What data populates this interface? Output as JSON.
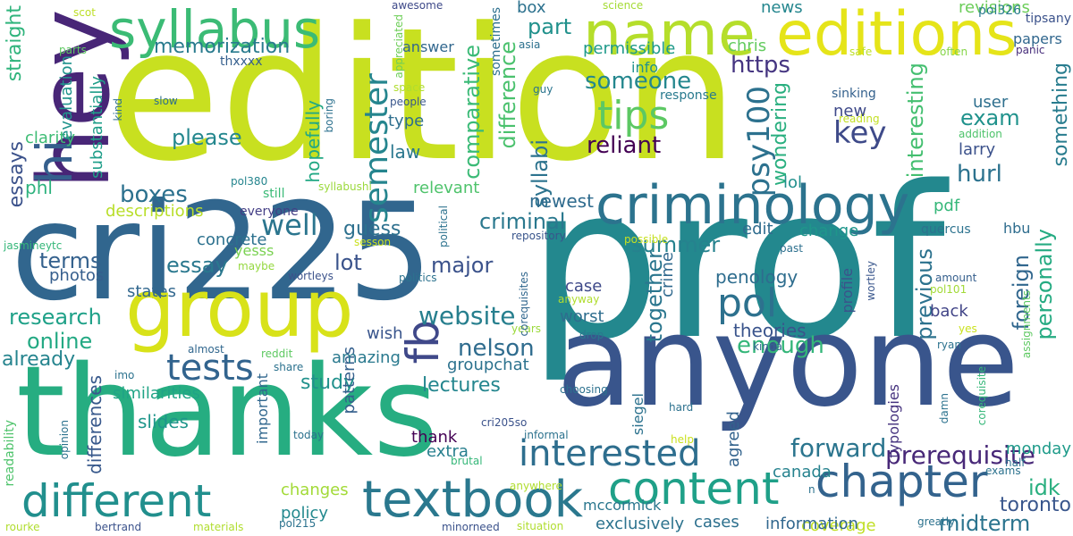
{
  "words": [
    {
      "text": "edition",
      "color": "#c8e020"
    },
    {
      "text": "prof",
      "color": "#23888e"
    },
    {
      "text": "cri225",
      "color": "#31668e"
    },
    {
      "text": "thanks",
      "color": "#26ad81"
    },
    {
      "text": "anyone",
      "color": "#39558c"
    },
    {
      "text": "hey",
      "color": "#482677"
    },
    {
      "text": "group",
      "color": "#d8e219"
    },
    {
      "text": "editions",
      "color": "#e5e419"
    },
    {
      "text": "syllabus",
      "color": "#3bbb75"
    },
    {
      "text": "name",
      "color": "#b5de2b"
    },
    {
      "text": "criminology",
      "color": "#2c738e"
    },
    {
      "text": "different",
      "color": "#218f8d"
    },
    {
      "text": "textbook",
      "color": "#2a788e"
    },
    {
      "text": "content",
      "color": "#1fa088"
    },
    {
      "text": "chapter",
      "color": "#33638d"
    },
    {
      "text": "interested",
      "color": "#2e6e8e"
    },
    {
      "text": "hi",
      "color": "#355f8d"
    },
    {
      "text": "tests",
      "color": "#32648e"
    },
    {
      "text": "fb",
      "color": "#3f4889"
    },
    {
      "text": "semester",
      "color": "#25858e"
    },
    {
      "text": "tips",
      "color": "#5cc863"
    },
    {
      "text": "pol",
      "color": "#2d718e"
    },
    {
      "text": "forward",
      "color": "#2b758e"
    },
    {
      "text": "prerequisite",
      "color": "#482878"
    },
    {
      "text": "well",
      "color": "#2b758e"
    },
    {
      "text": "website",
      "color": "#277f8e"
    },
    {
      "text": "key",
      "color": "#3e4a89"
    },
    {
      "text": "psy100",
      "color": "#2c718e"
    },
    {
      "text": "https",
      "color": "#453581"
    },
    {
      "text": "someone",
      "color": "#24878e"
    },
    {
      "text": "reliant",
      "color": "#440154"
    },
    {
      "text": "comparative",
      "color": "#3aba76"
    },
    {
      "text": "difference",
      "color": "#4ac16d"
    },
    {
      "text": "syllabi",
      "color": "#2c738e"
    },
    {
      "text": "part",
      "color": "#21918c"
    },
    {
      "text": "memorization",
      "color": "#297b8e"
    },
    {
      "text": "please",
      "color": "#24878e"
    },
    {
      "text": "criminal",
      "color": "#2a788e"
    },
    {
      "text": "summer",
      "color": "#26828e"
    },
    {
      "text": "boxes",
      "color": "#2c718e"
    },
    {
      "text": "essay",
      "color": "#2a788e"
    },
    {
      "text": "terms",
      "color": "#34618d"
    },
    {
      "text": "lot",
      "color": "#3a538b"
    },
    {
      "text": "major",
      "color": "#3b528b"
    },
    {
      "text": "guess",
      "color": "#2d708e"
    },
    {
      "text": "research",
      "color": "#1fa188"
    },
    {
      "text": "online",
      "color": "#23a983"
    },
    {
      "text": "already",
      "color": "#25848e"
    },
    {
      "text": "nelson",
      "color": "#2f6c8e"
    },
    {
      "text": "exam",
      "color": "#20928c"
    },
    {
      "text": "hurl",
      "color": "#2c728e"
    },
    {
      "text": "lectures",
      "color": "#24868e"
    },
    {
      "text": "study",
      "color": "#21918c"
    },
    {
      "text": "theories",
      "color": "#3a548c"
    },
    {
      "text": "penology",
      "color": "#2e6d8e"
    },
    {
      "text": "enough",
      "color": "#34b679"
    },
    {
      "text": "together",
      "color": "#2a768e"
    },
    {
      "text": "previous",
      "color": "#2c728e"
    },
    {
      "text": "personally",
      "color": "#25ab82"
    },
    {
      "text": "foreign",
      "color": "#31678e"
    },
    {
      "text": "interesting",
      "color": "#44bf70"
    },
    {
      "text": "something",
      "color": "#287c8e"
    },
    {
      "text": "midterm",
      "color": "#2b748e"
    },
    {
      "text": "idk",
      "color": "#29af7f"
    },
    {
      "text": "toronto",
      "color": "#39568c"
    },
    {
      "text": "wondering",
      "color": "#29af7f"
    },
    {
      "text": "straight",
      "color": "#2fb47c"
    },
    {
      "text": "essays",
      "color": "#3b528b"
    },
    {
      "text": "phl",
      "color": "#2db27d"
    },
    {
      "text": "clarity",
      "color": "#3dbc74"
    },
    {
      "text": "evaluation",
      "color": "#20938c"
    },
    {
      "text": "substantially",
      "color": "#1f9e89"
    },
    {
      "text": "law",
      "color": "#2a778e"
    },
    {
      "text": "type",
      "color": "#2e6f8e"
    },
    {
      "text": "hopefully",
      "color": "#22a884"
    },
    {
      "text": "newest",
      "color": "#2f6b8e"
    },
    {
      "text": "relevant",
      "color": "#4ec36b"
    },
    {
      "text": "descriptions",
      "color": "#b8de29"
    },
    {
      "text": "similarities",
      "color": "#20a486"
    },
    {
      "text": "slides",
      "color": "#1f968b"
    },
    {
      "text": "differences",
      "color": "#38598c"
    },
    {
      "text": "patterns",
      "color": "#35608d"
    },
    {
      "text": "important",
      "color": "#31678e"
    },
    {
      "text": "amazing",
      "color": "#29798e"
    },
    {
      "text": "groupchat",
      "color": "#2c728e"
    },
    {
      "text": "wish",
      "color": "#39558c"
    },
    {
      "text": "states",
      "color": "#31678e"
    },
    {
      "text": "concrete",
      "color": "#2c718e"
    },
    {
      "text": "photos",
      "color": "#355e8d"
    },
    {
      "text": "yesss",
      "color": "#7ad151"
    },
    {
      "text": "policy",
      "color": "#23898e"
    },
    {
      "text": "changes",
      "color": "#a2da37"
    },
    {
      "text": "extra",
      "color": "#277f8e"
    },
    {
      "text": "thank",
      "color": "#440154"
    },
    {
      "text": "case",
      "color": "#3e4989"
    },
    {
      "text": "worst",
      "color": "#2e6d8e"
    },
    {
      "text": "crime",
      "color": "#30698e"
    },
    {
      "text": "canada",
      "color": "#26828e"
    },
    {
      "text": "cases",
      "color": "#2d708e"
    },
    {
      "text": "exclusively",
      "color": "#2c738e"
    },
    {
      "text": "mccormick",
      "color": "#2a768e"
    },
    {
      "text": "coverage",
      "color": "#c0df25"
    },
    {
      "text": "information",
      "color": "#31678e"
    },
    {
      "text": "agreed",
      "color": "#33638d"
    },
    {
      "text": "siegel",
      "color": "#2c728e"
    },
    {
      "text": "profile",
      "color": "#3b528b"
    },
    {
      "text": "typologies",
      "color": "#46337f"
    },
    {
      "text": "back",
      "color": "#414487"
    },
    {
      "text": "monday",
      "color": "#1e9b8a"
    },
    {
      "text": "edit",
      "color": "#2f6c8e"
    },
    {
      "text": "change",
      "color": "#1f968b"
    },
    {
      "text": "pdf",
      "color": "#35b779"
    },
    {
      "text": "hbu",
      "color": "#2e6d8e"
    },
    {
      "text": "lol",
      "color": "#21908d"
    },
    {
      "text": "new",
      "color": "#3e4989"
    },
    {
      "text": "larry",
      "color": "#3b518b"
    },
    {
      "text": "user",
      "color": "#2e6f8e"
    },
    {
      "text": "chris",
      "color": "#63cb5f"
    },
    {
      "text": "permissible",
      "color": "#1f9a8a"
    },
    {
      "text": "answer",
      "color": "#31678e"
    },
    {
      "text": "info",
      "color": "#21918c"
    },
    {
      "text": "response",
      "color": "#297a8e"
    },
    {
      "text": "news",
      "color": "#24868e"
    },
    {
      "text": "box",
      "color": "#2c718e"
    },
    {
      "text": "papers",
      "color": "#31678e"
    },
    {
      "text": "revisions",
      "color": "#6ccd5a"
    },
    {
      "text": "sometimes",
      "color": "#2d708e"
    },
    {
      "text": "awesome",
      "color": "#3e4989"
    },
    {
      "text": "science",
      "color": "#a5db36"
    },
    {
      "text": "pol326",
      "color": "#287c8e"
    },
    {
      "text": "tipsany",
      "color": "#3b528b"
    },
    {
      "text": "panic",
      "color": "#472d7b"
    },
    {
      "text": "often",
      "color": "#86d549"
    },
    {
      "text": "safe",
      "color": "#bddf26"
    },
    {
      "text": "sinking",
      "color": "#34618d"
    },
    {
      "text": "reading",
      "color": "#c2df23"
    },
    {
      "text": "addition",
      "color": "#4ec36b"
    },
    {
      "text": "scot",
      "color": "#bddf26"
    },
    {
      "text": "parts",
      "color": "#5ec962"
    },
    {
      "text": "appreciated",
      "color": "#6ece58"
    },
    {
      "text": "asia",
      "color": "#2d718e"
    },
    {
      "text": "guy",
      "color": "#2b758e"
    },
    {
      "text": "space",
      "color": "#b0dd2f"
    },
    {
      "text": "people",
      "color": "#39568c"
    },
    {
      "text": "boring",
      "color": "#2c718e"
    },
    {
      "text": "slow",
      "color": "#2e6e8e"
    },
    {
      "text": "thxxxx",
      "color": "#355f8d"
    },
    {
      "text": "kind",
      "color": "#2d708e"
    },
    {
      "text": "pol380",
      "color": "#25858e"
    },
    {
      "text": "syllabushi",
      "color": "#9bd93c"
    },
    {
      "text": "still",
      "color": "#3aba76"
    },
    {
      "text": "everyone",
      "color": "#433e85"
    },
    {
      "text": "jasmineytc",
      "color": "#35b779"
    },
    {
      "text": "sesson",
      "color": "#cae11f"
    },
    {
      "text": "repository",
      "color": "#39558c"
    },
    {
      "text": "political",
      "color": "#2c728e"
    },
    {
      "text": "possible",
      "color": "#c5e021"
    },
    {
      "text": "past",
      "color": "#2d708e"
    },
    {
      "text": "quercus",
      "color": "#2c728e"
    },
    {
      "text": "maybe",
      "color": "#95d840"
    },
    {
      "text": "wortleys",
      "color": "#3b528b"
    },
    {
      "text": "politics",
      "color": "#2c728e"
    },
    {
      "text": "amount",
      "color": "#355f8d"
    },
    {
      "text": "pol101",
      "color": "#a2da37"
    },
    {
      "text": "wortley",
      "color": "#39568c"
    },
    {
      "text": "anyway",
      "color": "#b0dd2f"
    },
    {
      "text": "drop",
      "color": "#2a778e"
    },
    {
      "text": "yes",
      "color": "#cae11f"
    },
    {
      "text": "ryan",
      "color": "#2c728e"
    },
    {
      "text": "years",
      "color": "#9bd93c"
    },
    {
      "text": "corequisites",
      "color": "#31678e"
    },
    {
      "text": "assignments",
      "color": "#5ec962"
    },
    {
      "text": "almost",
      "color": "#31678e"
    },
    {
      "text": "reddit",
      "color": "#5ec962"
    },
    {
      "text": "share",
      "color": "#2c728e"
    },
    {
      "text": "kinda",
      "color": "#31678e"
    },
    {
      "text": "imo",
      "color": "#2c728e"
    },
    {
      "text": "corequisite",
      "color": "#35b779"
    },
    {
      "text": "choosing",
      "color": "#2c718e"
    },
    {
      "text": "hard",
      "color": "#2c718e"
    },
    {
      "text": "help",
      "color": "#cae11f"
    },
    {
      "text": "damn",
      "color": "#2c728e"
    },
    {
      "text": "today",
      "color": "#2c728e"
    },
    {
      "text": "cri205so",
      "color": "#3b528b"
    },
    {
      "text": "informal",
      "color": "#2c728e"
    },
    {
      "text": "brutal",
      "color": "#35b779"
    },
    {
      "text": "opinion",
      "color": "#2c728e"
    },
    {
      "text": "readability",
      "color": "#4ec36b"
    },
    {
      "text": "n",
      "color": "#2c728e"
    },
    {
      "text": "exams",
      "color": "#2c728e"
    },
    {
      "text": "greatly",
      "color": "#2c728e"
    },
    {
      "text": "anywhere",
      "color": "#b0dd2f"
    },
    {
      "text": "rourke",
      "color": "#b0dd2f"
    },
    {
      "text": "bertrand",
      "color": "#3b528b"
    },
    {
      "text": "materials",
      "color": "#b0dd2f"
    },
    {
      "text": "pol215",
      "color": "#2c728e"
    },
    {
      "text": "minorneed",
      "color": "#3b528b"
    },
    {
      "text": "situation",
      "color": "#b0dd2f"
    },
    {
      "text": "half",
      "color": "#2c728e"
    }
  ]
}
